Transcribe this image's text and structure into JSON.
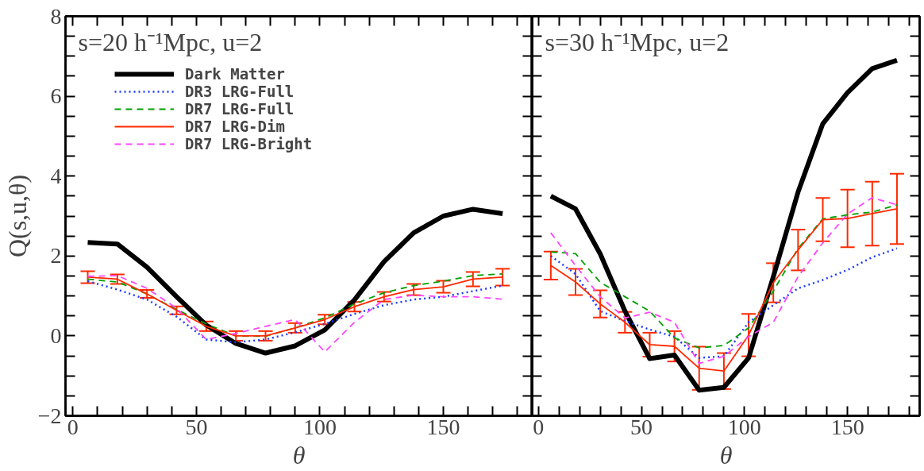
{
  "chart_data": [
    {
      "type": "line",
      "title": "s=20 h⁻¹Mpc, u=2",
      "xlabel": "θ",
      "ylabel": "Q(s,u,θ)",
      "legend": "top left",
      "grid": false,
      "marker": "none",
      "x": [
        6,
        18,
        30,
        42,
        54,
        66,
        78,
        90,
        102,
        114,
        126,
        138,
        150,
        162,
        174
      ],
      "xlim": [
        -3,
        186
      ],
      "ylim": [
        -2,
        8
      ],
      "xticks": [
        0,
        {
          "value": 10,
          "label": null
        },
        {
          "value": 20,
          "label": null
        },
        {
          "value": 30,
          "label": null
        },
        {
          "value": 40,
          "label": null
        },
        50,
        {
          "value": 60,
          "label": null
        },
        {
          "value": 70,
          "label": null
        },
        {
          "value": 80,
          "label": null
        },
        {
          "value": 90,
          "label": null
        },
        100,
        {
          "value": 110,
          "label": null
        },
        {
          "value": 120,
          "label": null
        },
        {
          "value": 130,
          "label": null
        },
        {
          "value": 140,
          "label": null
        },
        150,
        {
          "value": 160,
          "label": null
        },
        {
          "value": 170,
          "label": null
        },
        {
          "value": 180,
          "label": null
        }
      ],
      "yticks": [
        {
          "value": -2,
          "label": "−2"
        },
        {
          "value": -1.5,
          "label": null
        },
        {
          "value": -1,
          "label": null
        },
        {
          "value": -0.5,
          "label": null
        },
        0,
        {
          "value": 0.5,
          "label": null
        },
        {
          "value": 1,
          "label": null
        },
        {
          "value": 1.5,
          "label": null
        },
        2,
        {
          "value": 2.5,
          "label": null
        },
        {
          "value": 3,
          "label": null
        },
        {
          "value": 3.5,
          "label": null
        },
        4,
        {
          "value": 4.5,
          "label": null
        },
        {
          "value": 5,
          "label": null
        },
        {
          "value": 5.5,
          "label": null
        },
        6,
        {
          "value": 6.5,
          "label": null
        },
        {
          "value": 7,
          "label": null
        },
        {
          "value": 7.5,
          "label": null
        },
        8
      ],
      "series": [
        {
          "name": "Dark Matter",
          "color": "#000000",
          "line_style": "solid",
          "values": [
            2.34,
            2.3,
            1.72,
            0.98,
            0.27,
            -0.19,
            -0.43,
            -0.25,
            0.15,
            0.9,
            1.86,
            2.58,
            3.0,
            3.17,
            3.06
          ]
        },
        {
          "name": "DR3 LRG-Full",
          "color": "#1f3cff",
          "line_style": "dotted",
          "values": [
            1.37,
            1.16,
            0.91,
            0.48,
            -0.09,
            -0.16,
            -0.09,
            0.09,
            0.3,
            0.55,
            0.77,
            0.91,
            0.98,
            1.12,
            1.26
          ]
        },
        {
          "name": "DR7 LRG-Full",
          "color": "#00a000",
          "line_style": "dashed",
          "values": [
            1.42,
            1.35,
            1.05,
            0.66,
            0.3,
            0.0,
            -0.01,
            0.2,
            0.45,
            0.8,
            1.08,
            1.26,
            1.37,
            1.51,
            1.55
          ]
        },
        {
          "name": "DR7 LRG-Dim",
          "color": "#ff2a00",
          "line_style": "solid",
          "values": [
            1.47,
            1.42,
            1.05,
            0.64,
            0.24,
            0.0,
            0.0,
            0.2,
            0.41,
            0.73,
            0.98,
            1.16,
            1.23,
            1.42,
            1.47
          ],
          "errors": [
            0.15,
            0.12,
            0.1,
            0.1,
            0.12,
            0.12,
            0.12,
            0.12,
            0.12,
            0.12,
            0.12,
            0.14,
            0.15,
            0.18,
            0.21
          ]
        },
        {
          "name": "DR7 LRG-Bright",
          "color": "#ff44ff",
          "line_style": "dashed",
          "values": [
            1.49,
            1.51,
            1.19,
            0.69,
            -0.09,
            0.06,
            0.24,
            0.41,
            -0.4,
            0.34,
            0.91,
            1.02,
            0.98,
            0.98,
            0.92
          ]
        }
      ]
    },
    {
      "type": "line",
      "title": "s=30 h⁻¹Mpc, u=2",
      "xlabel": "θ",
      "legend": false,
      "grid": false,
      "marker": "none",
      "tick_labels": "x",
      "x": [
        6,
        18,
        30,
        42,
        54,
        66,
        78,
        90,
        102,
        114,
        126,
        138,
        150,
        162,
        174
      ],
      "xlim": [
        -3,
        185
      ],
      "ylim": [
        -2,
        8
      ],
      "xticks": [
        0,
        {
          "value": 10,
          "label": null
        },
        {
          "value": 20,
          "label": null
        },
        {
          "value": 30,
          "label": null
        },
        {
          "value": 40,
          "label": null
        },
        50,
        {
          "value": 60,
          "label": null
        },
        {
          "value": 70,
          "label": null
        },
        {
          "value": 80,
          "label": null
        },
        {
          "value": 90,
          "label": null
        },
        100,
        {
          "value": 110,
          "label": null
        },
        {
          "value": 120,
          "label": null
        },
        {
          "value": 130,
          "label": null
        },
        {
          "value": 140,
          "label": null
        },
        150,
        {
          "value": 160,
          "label": null
        },
        {
          "value": 170,
          "label": null
        },
        {
          "value": 180,
          "label": null
        }
      ],
      "yticks": [
        -2,
        {
          "value": -1.5,
          "label": null
        },
        {
          "value": -1,
          "label": null
        },
        {
          "value": -0.5,
          "label": null
        },
        0,
        {
          "value": 0.5,
          "label": null
        },
        {
          "value": 1,
          "label": null
        },
        {
          "value": 1.5,
          "label": null
        },
        2,
        {
          "value": 2.5,
          "label": null
        },
        {
          "value": 3,
          "label": null
        },
        {
          "value": 3.5,
          "label": null
        },
        4,
        {
          "value": 4.5,
          "label": null
        },
        {
          "value": 5,
          "label": null
        },
        {
          "value": 5.5,
          "label": null
        },
        6,
        {
          "value": 6.5,
          "label": null
        },
        {
          "value": 7,
          "label": null
        },
        {
          "value": 7.5,
          "label": null
        },
        8
      ],
      "series": [
        {
          "color": "#000000",
          "line_style": "solid",
          "values": [
            3.5,
            3.18,
            2.05,
            0.62,
            -0.57,
            -0.48,
            -1.36,
            -1.29,
            -0.55,
            1.48,
            3.6,
            5.31,
            6.09,
            6.69,
            6.9
          ]
        },
        {
          "color": "#1f3cff",
          "line_style": "dotted",
          "values": [
            2.0,
            1.55,
            0.62,
            0.37,
            0.16,
            -0.02,
            -0.55,
            -0.51,
            0.34,
            0.77,
            1.19,
            1.4,
            1.65,
            1.97,
            2.19
          ]
        },
        {
          "color": "#00a000",
          "line_style": "dashed",
          "values": [
            2.1,
            2.06,
            1.34,
            0.98,
            0.62,
            -0.05,
            -0.3,
            -0.24,
            0.2,
            1.12,
            2.19,
            2.93,
            3.03,
            3.1,
            3.28
          ]
        },
        {
          "color": "#ff2a00",
          "line_style": "solid",
          "values": [
            1.76,
            1.35,
            0.8,
            0.34,
            -0.22,
            -0.26,
            -0.81,
            -0.88,
            0.02,
            1.33,
            2.15,
            2.91,
            2.94,
            3.06,
            3.18
          ],
          "errors": [
            0.35,
            0.33,
            0.34,
            0.26,
            0.3,
            0.38,
            0.54,
            0.45,
            0.53,
            0.49,
            0.51,
            0.54,
            0.72,
            0.8,
            0.88
          ]
        },
        {
          "color": "#ff44ff",
          "line_style": "dashed",
          "values": [
            2.58,
            1.76,
            0.98,
            0.45,
            0.59,
            0.34,
            -0.69,
            -0.51,
            -0.02,
            0.34,
            1.48,
            2.33,
            3.05,
            3.46,
            3.28
          ]
        }
      ]
    }
  ]
}
